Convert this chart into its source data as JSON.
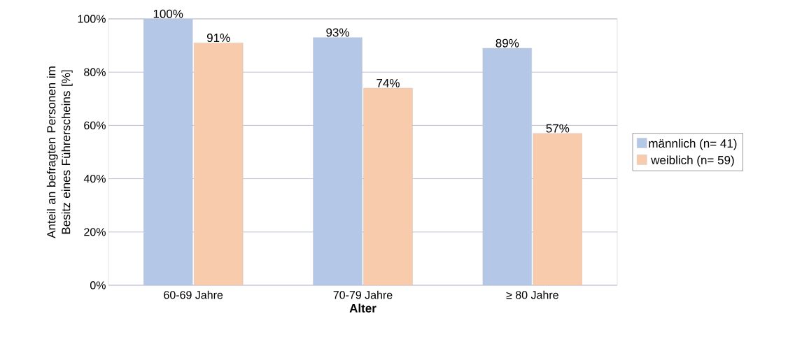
{
  "chart_data": {
    "type": "bar",
    "categories": [
      "60-69 Jahre",
      "70-79 Jahre",
      "≥ 80 Jahre"
    ],
    "series": [
      {
        "name": "männlich (n= 41)",
        "color": "#b4c7e7",
        "values": [
          100,
          93,
          89
        ],
        "value_labels": [
          "100%",
          "93%",
          "89%"
        ]
      },
      {
        "name": "weiblich (n= 59)",
        "color": "#f8cbad",
        "values": [
          91,
          74,
          57
        ],
        "value_labels": [
          "91%",
          "74%",
          "57%"
        ]
      }
    ],
    "xlabel": "Alter",
    "ylabel": "Anteil an befragten Personen im Besitz eines Führerscheins [%]",
    "ylim": [
      0,
      100
    ],
    "yticks": [
      {
        "value": 0,
        "label": "0%"
      },
      {
        "value": 20,
        "label": "20%"
      },
      {
        "value": 40,
        "label": "40%"
      },
      {
        "value": 60,
        "label": "60%"
      },
      {
        "value": 80,
        "label": "80%"
      },
      {
        "value": 100,
        "label": "100%"
      }
    ],
    "grid": "y",
    "legend": "right"
  }
}
